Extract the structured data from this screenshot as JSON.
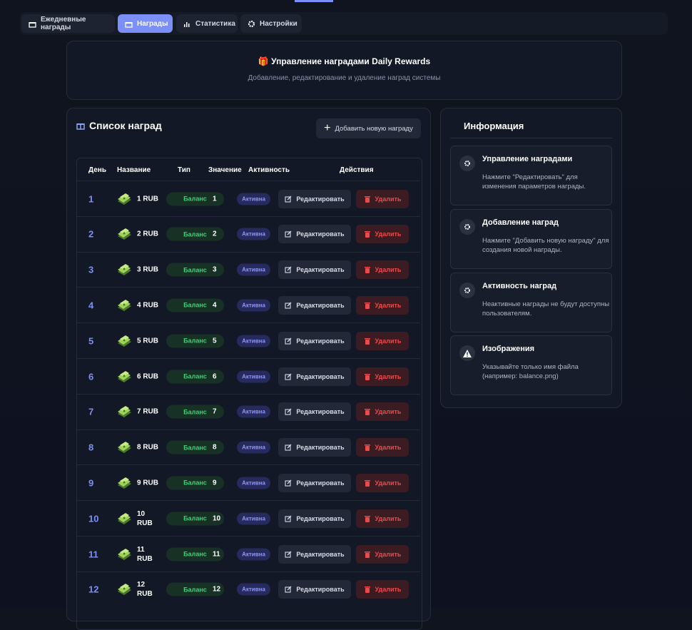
{
  "tabs": [
    "Ежедневные награды",
    "Награды",
    "Статистика",
    "Настройки"
  ],
  "active_tab": 1,
  "header": {
    "title": "Управление наградами Daily Rewards",
    "subtitle": "Добавление, редактирование и удаление наград системы"
  },
  "list": {
    "title": "Список наград",
    "add_button": "Добавить новую награду",
    "columns": [
      "День",
      "Название",
      "Тип",
      "Значение",
      "Активность",
      "Действия"
    ],
    "rows": [
      [
        1,
        "1 RUB",
        "Баланс",
        1,
        "Активна",
        "Редактировать",
        "Удалить"
      ],
      [
        2,
        "2 RUB",
        "Баланс",
        2,
        "Активна",
        "Редактировать",
        "Удалить"
      ],
      [
        3,
        "3 RUB",
        "Баланс",
        3,
        "Активна",
        "Редактировать",
        "Удалить"
      ],
      [
        4,
        "4 RUB",
        "Баланс",
        4,
        "Активна",
        "Редактировать",
        "Удалить"
      ],
      [
        5,
        "5 RUB",
        "Баланс",
        5,
        "Активна",
        "Редактировать",
        "Удалить"
      ],
      [
        6,
        "6 RUB",
        "Баланс",
        6,
        "Активна",
        "Редактировать",
        "Удалить"
      ],
      [
        7,
        "7 RUB",
        "Баланс",
        7,
        "Активна",
        "Редактировать",
        "Удалить"
      ],
      [
        8,
        "8 RUB",
        "Баланс",
        8,
        "Активна",
        "Редактировать",
        "Удалить"
      ],
      [
        9,
        "9 RUB",
        "Баланс",
        9,
        "Активна",
        "Редактировать",
        "Удалить"
      ],
      [
        10,
        "10 RUB",
        "Баланс",
        10,
        "Активна",
        "Редактировать",
        "Удалить"
      ],
      [
        11,
        "11 RUB",
        "Баланс",
        11,
        "Активна",
        "Редактировать",
        "Удалить"
      ],
      [
        12,
        "12 RUB",
        "Баланс",
        12,
        "Активна",
        "Редактировать",
        "Удалить"
      ]
    ]
  },
  "info": {
    "title": "Информация",
    "cards": [
      {
        "title": "Управление наградами",
        "text": "Нажмите \"Редактировать\" для изменения параметров награды."
      },
      {
        "title": "Добавление наград",
        "text": "Нажмите \"Добавить новую награду\" для создания новой награды."
      },
      {
        "title": "Активность наград",
        "text": "Неактивные награды не будут доступны пользователям."
      },
      {
        "title": "Изображения",
        "text": "Указывайте только имя файла (например: balance.png)"
      }
    ]
  }
}
